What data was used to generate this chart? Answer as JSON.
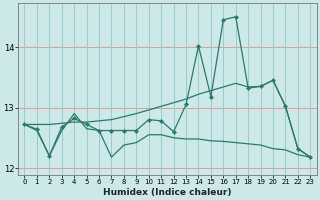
{
  "xlabel": "Humidex (Indice chaleur)",
  "background_color": "#cce8e8",
  "line_color": "#2a7a6a",
  "grid_color_h": "#e89898",
  "grid_color_v": "#99cccc",
  "xlim": [
    -0.5,
    23.5
  ],
  "ylim": [
    11.88,
    14.72
  ],
  "yticks": [
    12,
    13,
    14
  ],
  "xticks": [
    0,
    1,
    2,
    3,
    4,
    5,
    6,
    7,
    8,
    9,
    10,
    11,
    12,
    13,
    14,
    15,
    16,
    17,
    18,
    19,
    20,
    21,
    22,
    23
  ],
  "line_wavy_x": [
    0,
    1,
    2,
    3,
    4,
    5,
    6,
    7,
    8,
    9,
    10,
    11,
    12,
    13,
    14,
    15,
    16,
    17,
    18,
    19,
    20,
    21,
    22,
    23
  ],
  "line_wavy_y": [
    12.72,
    12.64,
    12.2,
    12.68,
    12.82,
    12.72,
    12.62,
    12.62,
    12.62,
    12.62,
    12.8,
    12.78,
    12.6,
    13.05,
    14.02,
    13.18,
    14.45,
    14.5,
    13.32,
    13.35,
    13.45,
    13.02,
    12.32,
    12.18
  ],
  "line_trend_x": [
    0,
    1,
    2,
    3,
    4,
    5,
    6,
    7,
    8,
    9,
    10,
    11,
    12,
    13,
    14,
    15,
    16,
    17,
    18,
    19,
    20,
    21,
    22,
    23
  ],
  "line_trend_y": [
    12.72,
    12.72,
    12.72,
    12.74,
    12.76,
    12.76,
    12.78,
    12.8,
    12.85,
    12.9,
    12.96,
    13.02,
    13.08,
    13.14,
    13.22,
    13.28,
    13.34,
    13.4,
    13.34,
    13.35,
    13.45,
    13.02,
    12.32,
    12.18
  ],
  "line_flat_x": [
    0,
    1,
    2,
    3,
    4,
    5,
    6,
    7,
    8,
    9,
    10,
    11,
    12,
    13,
    14,
    15,
    16,
    17,
    18,
    19,
    20,
    21,
    22,
    23
  ],
  "line_flat_y": [
    12.72,
    12.62,
    12.2,
    12.62,
    12.9,
    12.65,
    12.62,
    12.18,
    12.38,
    12.42,
    12.55,
    12.55,
    12.5,
    12.48,
    12.48,
    12.45,
    12.44,
    12.42,
    12.4,
    12.38,
    12.32,
    12.3,
    12.22,
    12.18
  ]
}
